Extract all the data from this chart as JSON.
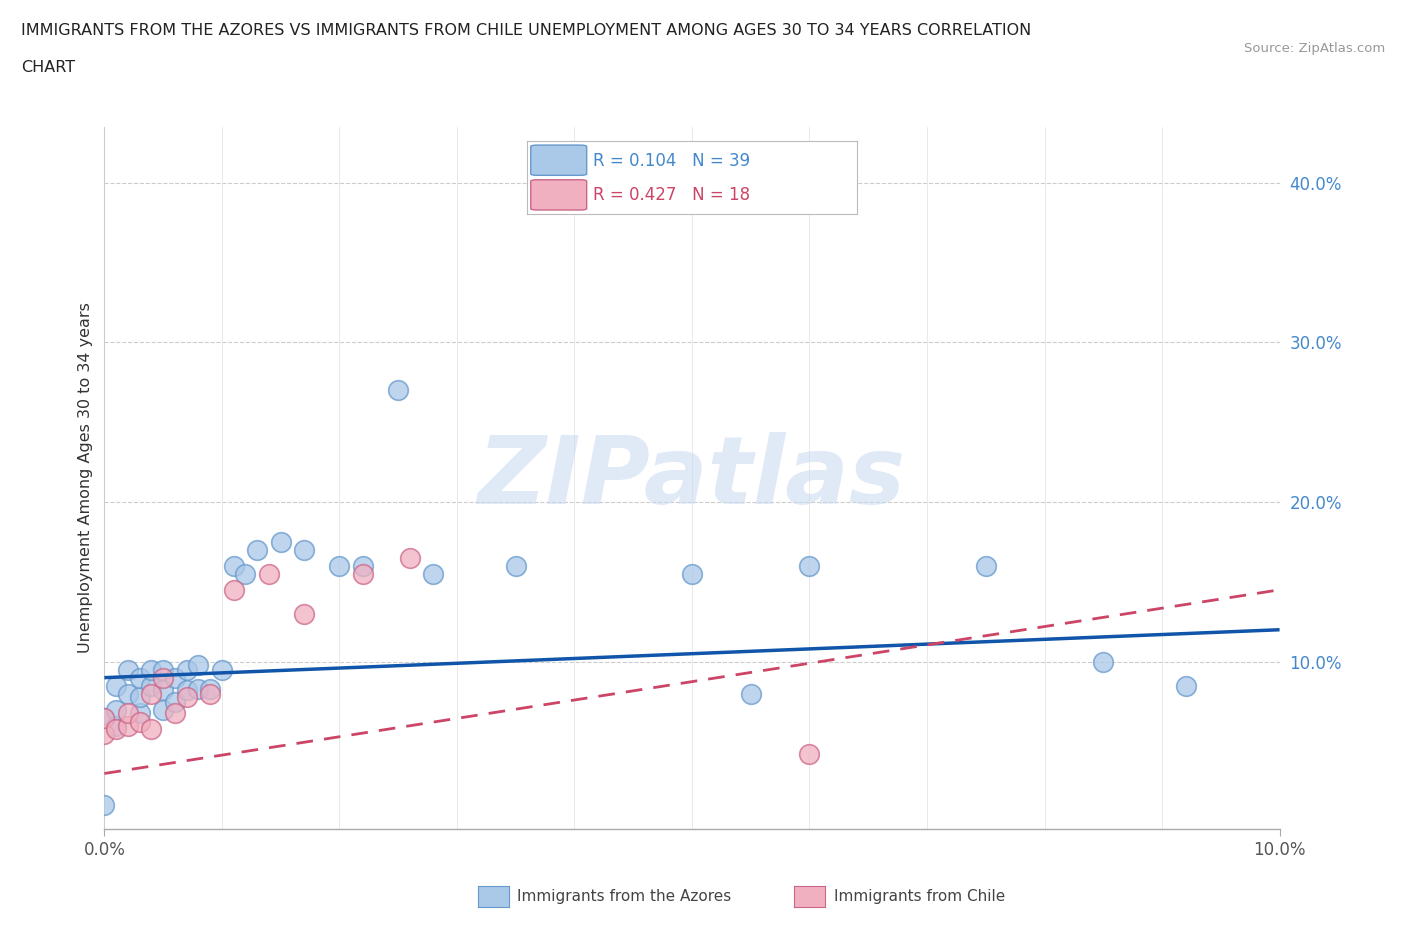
{
  "title_line1": "IMMIGRANTS FROM THE AZORES VS IMMIGRANTS FROM CHILE UNEMPLOYMENT AMONG AGES 30 TO 34 YEARS CORRELATION",
  "title_line2": "CHART",
  "source_text": "Source: ZipAtlas.com",
  "ylabel": "Unemployment Among Ages 30 to 34 years",
  "xmin": 0.0,
  "xmax": 0.1,
  "ymin": -0.005,
  "ymax": 0.435,
  "ytick_labels": [
    "10.0%",
    "20.0%",
    "30.0%",
    "40.0%"
  ],
  "ytick_vals": [
    0.1,
    0.2,
    0.3,
    0.4
  ],
  "ytick_color": "#4488cc",
  "xtick_labels": [
    "0.0%",
    "10.0%"
  ],
  "xtick_vals": [
    0.0,
    0.1
  ],
  "azores_color": "#aac8e8",
  "azores_edge": "#6699cc",
  "chile_color": "#f0b0c0",
  "chile_edge": "#cc6688",
  "trendline_azores_color": "#1155aa",
  "trendline_chile_color": "#cc4466",
  "legend_text_azores": "R = 0.104   N = 39",
  "legend_text_chile": "R = 0.427   N = 18",
  "legend_color_azores": "#4488cc",
  "legend_color_chile": "#cc4466",
  "watermark": "ZIPatlas",
  "bottom_legend_azores": "Immigrants from the Azores",
  "bottom_legend_chile": "Immigrants from Chile",
  "azores_x": [
    0.0,
    0.0,
    0.001,
    0.001,
    0.001,
    0.002,
    0.002,
    0.003,
    0.003,
    0.003,
    0.004,
    0.004,
    0.005,
    0.005,
    0.005,
    0.006,
    0.006,
    0.007,
    0.007,
    0.008,
    0.008,
    0.009,
    0.01,
    0.011,
    0.012,
    0.013,
    0.015,
    0.017,
    0.02,
    0.022,
    0.025,
    0.028,
    0.035,
    0.05,
    0.055,
    0.06,
    0.075,
    0.085,
    0.092
  ],
  "azores_y": [
    0.065,
    0.01,
    0.085,
    0.06,
    0.07,
    0.08,
    0.095,
    0.068,
    0.078,
    0.09,
    0.085,
    0.095,
    0.07,
    0.082,
    0.095,
    0.075,
    0.09,
    0.082,
    0.095,
    0.083,
    0.098,
    0.083,
    0.095,
    0.16,
    0.155,
    0.17,
    0.175,
    0.17,
    0.16,
    0.16,
    0.27,
    0.155,
    0.16,
    0.155,
    0.08,
    0.16,
    0.16,
    0.1,
    0.085
  ],
  "chile_x": [
    0.0,
    0.0,
    0.001,
    0.002,
    0.002,
    0.003,
    0.004,
    0.004,
    0.005,
    0.006,
    0.007,
    0.009,
    0.011,
    0.014,
    0.017,
    0.022,
    0.026,
    0.06
  ],
  "chile_y": [
    0.055,
    0.065,
    0.058,
    0.06,
    0.068,
    0.062,
    0.058,
    0.08,
    0.09,
    0.068,
    0.078,
    0.08,
    0.145,
    0.155,
    0.13,
    0.155,
    0.165,
    0.042
  ]
}
